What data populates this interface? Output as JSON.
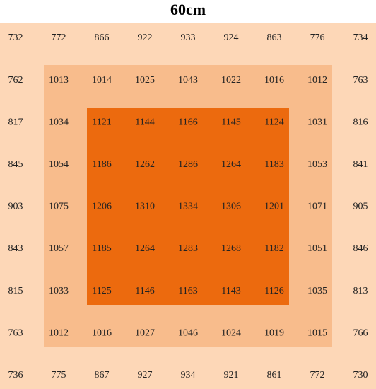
{
  "title": "60cm",
  "grid": {
    "rows": [
      [
        732,
        772,
        866,
        922,
        933,
        924,
        863,
        776,
        734
      ],
      [
        762,
        1013,
        1014,
        1025,
        1043,
        1022,
        1016,
        1012,
        763
      ],
      [
        817,
        1034,
        1121,
        1144,
        1166,
        1145,
        1124,
        1031,
        816
      ],
      [
        845,
        1054,
        1186,
        1262,
        1286,
        1264,
        1183,
        1053,
        841
      ],
      [
        903,
        1075,
        1206,
        1310,
        1334,
        1306,
        1201,
        1071,
        905
      ],
      [
        843,
        1057,
        1185,
        1264,
        1283,
        1268,
        1182,
        1051,
        846
      ],
      [
        815,
        1033,
        1125,
        1146,
        1163,
        1143,
        1126,
        1035,
        813
      ],
      [
        763,
        1012,
        1016,
        1027,
        1046,
        1024,
        1019,
        1015,
        766
      ],
      [
        736,
        775,
        867,
        927,
        934,
        921,
        861,
        772,
        730
      ]
    ]
  }
}
